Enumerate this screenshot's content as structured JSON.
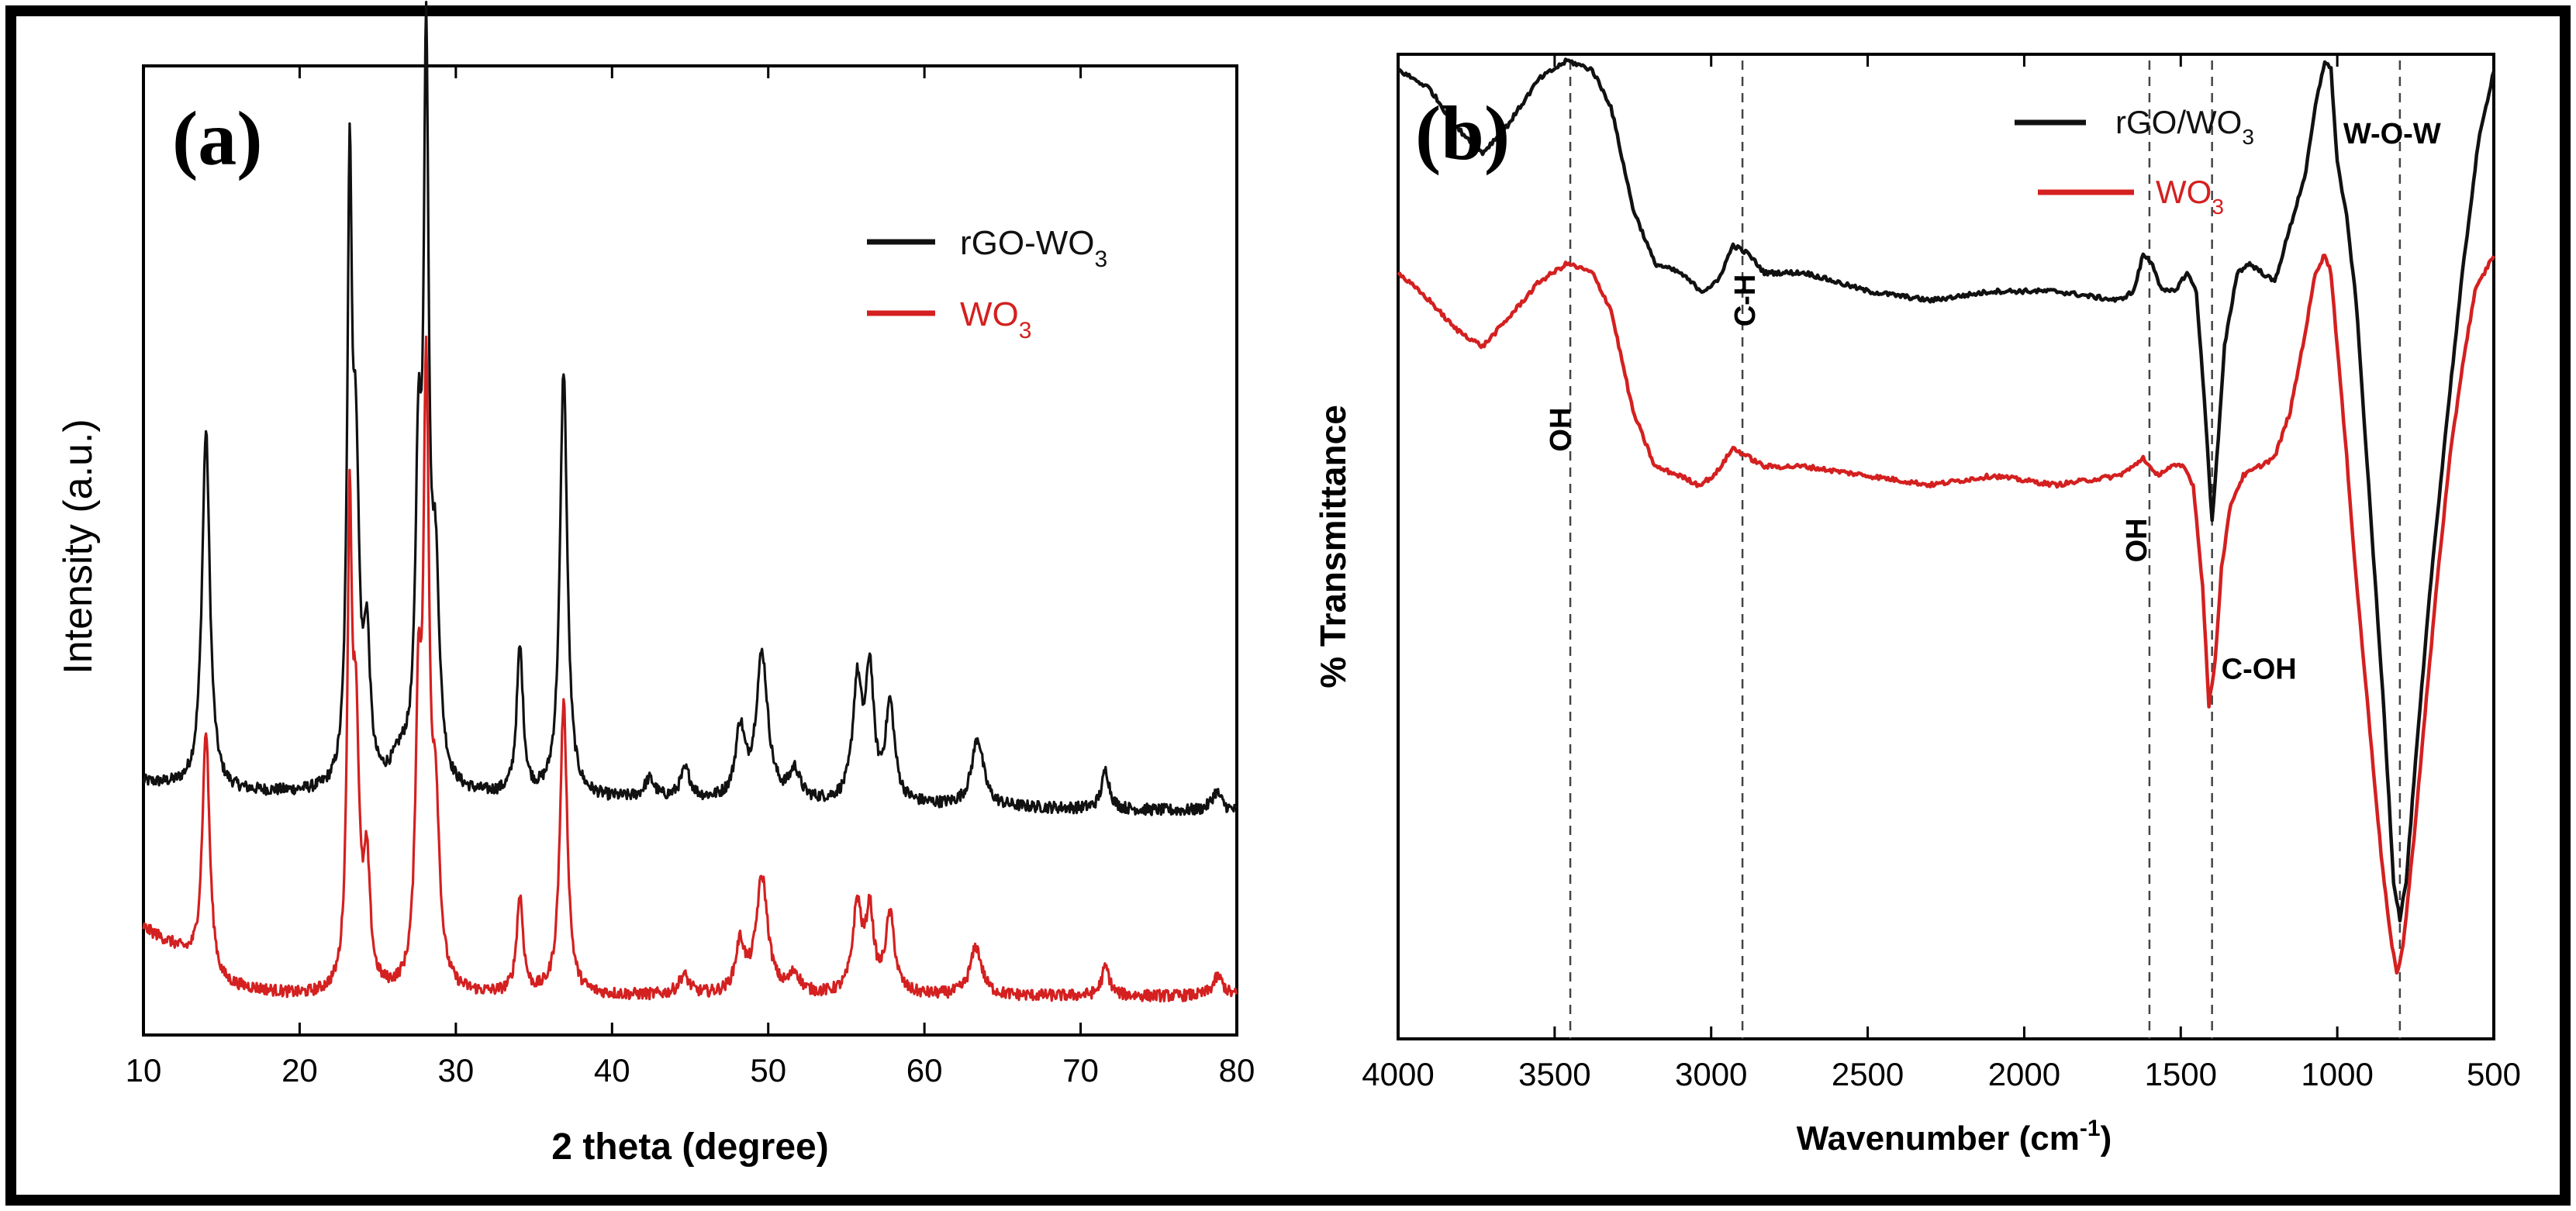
{
  "colors": {
    "black_series": "#111111",
    "red_series": "#d42020",
    "axis": "#000000",
    "frame": "#000000",
    "guide": "#444444"
  },
  "chart_data": [
    {
      "panel_label": "(a)",
      "type": "line",
      "title": "",
      "xlabel": "2 theta (degree)",
      "ylabel": "Intensity (a.u.)",
      "xlim": [
        10,
        80
      ],
      "ylim": [
        0,
        100
      ],
      "x_ticks": [
        10,
        20,
        30,
        40,
        50,
        60,
        70,
        80
      ],
      "x_tick_labels": [
        "10",
        "20",
        "30",
        "40",
        "50",
        "60",
        "70",
        "80"
      ],
      "y_ticks": [],
      "legend": {
        "placement": "top-right",
        "entries": [
          {
            "name": "rGO-WO",
            "sub": "3",
            "series": 0
          },
          {
            "name": "WO",
            "sub": "3",
            "series": 1
          }
        ]
      },
      "series": [
        {
          "name": "rGO-WO3",
          "color_key": "black_series",
          "baseline": 25,
          "noise": 0.6,
          "background": [
            [
              10,
              1
            ],
            [
              15,
              0
            ],
            [
              80,
              -2
            ]
          ],
          "peaks": [
            [
              14.0,
              37,
              0.3
            ],
            [
              23.2,
              60,
              0.18
            ],
            [
              23.6,
              30,
              0.25
            ],
            [
              24.3,
              14,
              0.25
            ],
            [
              26.5,
              3,
              0.8
            ],
            [
              27.6,
              30,
              0.22
            ],
            [
              28.1,
              72,
              0.2
            ],
            [
              28.7,
              20,
              0.3
            ],
            [
              34.1,
              15,
              0.25
            ],
            [
              36.9,
              44,
              0.28
            ],
            [
              42.4,
              2,
              0.4
            ],
            [
              44.7,
              3,
              0.4
            ],
            [
              48.2,
              7,
              0.35
            ],
            [
              49.6,
              15,
              0.45
            ],
            [
              51.7,
              3,
              0.4
            ],
            [
              55.7,
              12,
              0.35
            ],
            [
              56.5,
              13,
              0.3
            ],
            [
              57.8,
              10,
              0.35
            ],
            [
              63.4,
              7,
              0.45
            ],
            [
              71.6,
              4,
              0.3
            ],
            [
              78.7,
              2,
              0.4
            ]
          ]
        },
        {
          "name": "WO3",
          "color_key": "red_series",
          "baseline": 4,
          "noise": 0.6,
          "background": [
            [
              10,
              7
            ],
            [
              12,
              5
            ],
            [
              15,
              1
            ],
            [
              20,
              0
            ],
            [
              80,
              0
            ]
          ],
          "peaks": [
            [
              14.0,
              25,
              0.28
            ],
            [
              23.2,
              46,
              0.18
            ],
            [
              23.6,
              25,
              0.25
            ],
            [
              24.3,
              12,
              0.25
            ],
            [
              27.6,
              26,
              0.22
            ],
            [
              28.1,
              60,
              0.22
            ],
            [
              28.7,
              17,
              0.3
            ],
            [
              34.1,
              10,
              0.25
            ],
            [
              36.9,
              30,
              0.28
            ],
            [
              44.6,
              2,
              0.4
            ],
            [
              48.2,
              5,
              0.35
            ],
            [
              49.6,
              12,
              0.45
            ],
            [
              51.7,
              2,
              0.4
            ],
            [
              55.7,
              9,
              0.35
            ],
            [
              56.5,
              8,
              0.3
            ],
            [
              57.8,
              8,
              0.35
            ],
            [
              63.3,
              5,
              0.45
            ],
            [
              71.6,
              3,
              0.3
            ],
            [
              78.8,
              2,
              0.4
            ]
          ]
        }
      ]
    },
    {
      "panel_label": "(b)",
      "type": "line",
      "title": "",
      "xlabel": "Wavenumber (cm",
      "xlabel_sup": "-1",
      "xlabel_tail": ")",
      "ylabel": "% Transmittance",
      "xlim": [
        4000,
        500
      ],
      "ylim": [
        0,
        100
      ],
      "x_ticks": [
        4000,
        3500,
        3000,
        2500,
        2000,
        1500,
        1000,
        500
      ],
      "x_tick_labels": [
        "4000",
        "3500",
        "3000",
        "2500",
        "2000",
        "1500",
        "1000",
        "500"
      ],
      "y_ticks": [],
      "legend": {
        "placement": "top-right",
        "entries": [
          {
            "name": "rGO/WO",
            "sub": "3",
            "series": 0
          },
          {
            "name": "WO",
            "sub": "3",
            "series": 1
          }
        ]
      },
      "annotations": [
        {
          "text": "OH",
          "x": 3450,
          "y": 61,
          "rotate": -90
        },
        {
          "text": "C-H",
          "x": 2860,
          "y": 75,
          "rotate": -90
        },
        {
          "text": "OH",
          "x": 1610,
          "y": 49,
          "rotate": -90
        },
        {
          "text": "C-OH",
          "x": 1250,
          "y": 34,
          "rotate": 0
        },
        {
          "text": "W-O-W",
          "x": 825,
          "y": 92,
          "rotate": 0
        }
      ],
      "guide_lines": [
        3450,
        2900,
        1600,
        1400,
        800
      ],
      "series": [
        {
          "name": "rGO/WO3",
          "color_key": "black_series",
          "points": [
            [
              4000,
              100
            ],
            [
              3900,
              98
            ],
            [
              3820,
              94
            ],
            [
              3730,
              91
            ],
            [
              3650,
              94
            ],
            [
              3550,
              99
            ],
            [
              3460,
              101
            ],
            [
              3380,
              100
            ],
            [
              3320,
              96
            ],
            [
              3250,
              85
            ],
            [
              3180,
              79
            ],
            [
              3100,
              78
            ],
            [
              3030,
              76
            ],
            [
              2980,
              77
            ],
            [
              2930,
              81
            ],
            [
              2880,
              80
            ],
            [
              2830,
              78
            ],
            [
              2700,
              78
            ],
            [
              2500,
              76
            ],
            [
              2300,
              75
            ],
            [
              2100,
              76
            ],
            [
              1900,
              76
            ],
            [
              1700,
              75
            ],
            [
              1650,
              76
            ],
            [
              1620,
              80
            ],
            [
              1590,
              79
            ],
            [
              1560,
              76
            ],
            [
              1520,
              76
            ],
            [
              1480,
              78
            ],
            [
              1450,
              76
            ],
            [
              1420,
              62
            ],
            [
              1400,
              51
            ],
            [
              1380,
              60
            ],
            [
              1360,
              70
            ],
            [
              1320,
              78
            ],
            [
              1280,
              79
            ],
            [
              1240,
              78
            ],
            [
              1200,
              77
            ],
            [
              1150,
              83
            ],
            [
              1100,
              89
            ],
            [
              1070,
              96
            ],
            [
              1040,
              101
            ],
            [
              1020,
              100
            ],
            [
              1000,
              90
            ],
            [
              970,
              84
            ],
            [
              940,
              75
            ],
            [
              900,
              55
            ],
            [
              850,
              30
            ],
            [
              820,
              12
            ],
            [
              800,
              8
            ],
            [
              780,
              12
            ],
            [
              750,
              25
            ],
            [
              700,
              45
            ],
            [
              650,
              62
            ],
            [
              600,
              78
            ],
            [
              550,
              92
            ],
            [
              500,
              100
            ]
          ]
        },
        {
          "name": "WO3",
          "color_key": "red_series",
          "points": [
            [
              4000,
              78
            ],
            [
              3900,
              75
            ],
            [
              3820,
              72
            ],
            [
              3730,
              70
            ],
            [
              3650,
              73
            ],
            [
              3550,
              77
            ],
            [
              3460,
              79
            ],
            [
              3380,
              78
            ],
            [
              3320,
              74
            ],
            [
              3250,
              63
            ],
            [
              3180,
              57
            ],
            [
              3100,
              56
            ],
            [
              3040,
              55
            ],
            [
              2990,
              56
            ],
            [
              2930,
              59
            ],
            [
              2880,
              58
            ],
            [
              2830,
              57
            ],
            [
              2700,
              57
            ],
            [
              2500,
              56
            ],
            [
              2300,
              55
            ],
            [
              2100,
              56
            ],
            [
              1900,
              55
            ],
            [
              1700,
              56
            ],
            [
              1650,
              57
            ],
            [
              1620,
              58
            ],
            [
              1580,
              56
            ],
            [
              1530,
              57
            ],
            [
              1490,
              57
            ],
            [
              1460,
              55
            ],
            [
              1430,
              44
            ],
            [
              1410,
              31
            ],
            [
              1390,
              36
            ],
            [
              1370,
              46
            ],
            [
              1340,
              53
            ],
            [
              1300,
              56
            ],
            [
              1250,
              57
            ],
            [
              1200,
              58
            ],
            [
              1150,
              63
            ],
            [
              1100,
              72
            ],
            [
              1070,
              78
            ],
            [
              1040,
              80
            ],
            [
              1020,
              78
            ],
            [
              1000,
              70
            ],
            [
              970,
              58
            ],
            [
              940,
              45
            ],
            [
              900,
              30
            ],
            [
              860,
              15
            ],
            [
              830,
              6
            ],
            [
              810,
              2
            ],
            [
              790,
              5
            ],
            [
              760,
              15
            ],
            [
              720,
              30
            ],
            [
              680,
              45
            ],
            [
              640,
              58
            ],
            [
              600,
              68
            ],
            [
              560,
              76
            ],
            [
              500,
              80
            ]
          ]
        }
      ]
    }
  ]
}
